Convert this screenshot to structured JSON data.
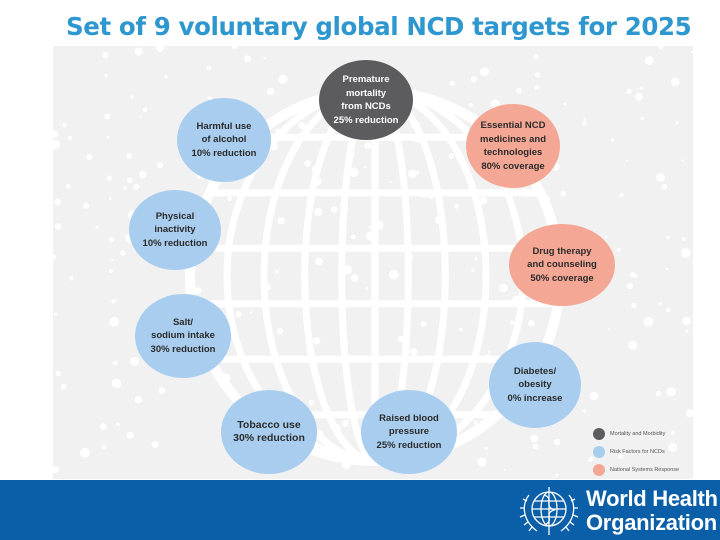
{
  "title": "Set of 9 voluntary global NCD targets for 2025",
  "colors": {
    "title": "#2f97cf",
    "mortality": "#5c5c5e",
    "risk_factors": "#a8cdee",
    "national_systems": "#f4a795",
    "footer": "#0a5fa8"
  },
  "targets": [
    {
      "category": "mortality",
      "lines": [
        "Premature",
        "mortality",
        "from NCDs",
        "25% reduction"
      ]
    },
    {
      "category": "national_systems",
      "lines": [
        "Essential NCD",
        "medicines and",
        "technologies",
        "80% coverage"
      ]
    },
    {
      "category": "national_systems",
      "lines": [
        "Drug therapy",
        "and counseling",
        "50% coverage"
      ]
    },
    {
      "category": "risk_factors",
      "lines": [
        "Diabetes/",
        "obesity",
        "0% increase"
      ]
    },
    {
      "category": "risk_factors",
      "lines": [
        "Raised blood",
        "pressure",
        "25% reduction"
      ]
    },
    {
      "category": "risk_factors",
      "lines": [
        "Tobacco use",
        "30% reduction"
      ]
    },
    {
      "category": "risk_factors",
      "lines": [
        "Salt/",
        "sodium intake",
        "30% reduction"
      ]
    },
    {
      "category": "risk_factors",
      "lines": [
        "Physical",
        "inactivity",
        "10% reduction"
      ]
    },
    {
      "category": "risk_factors",
      "lines": [
        "Harmful use",
        "of alcohol",
        "10% reduction"
      ]
    }
  ],
  "legend": [
    {
      "category": "mortality",
      "label": "Mortality and Morbidity"
    },
    {
      "category": "risk_factors",
      "label": "Risk Factors for NCDs"
    },
    {
      "category": "national_systems",
      "label": "National Systems Response"
    }
  ],
  "footer": {
    "org_line1": "World Health",
    "org_line2": "Organization",
    "emblem": "who-emblem-icon"
  }
}
